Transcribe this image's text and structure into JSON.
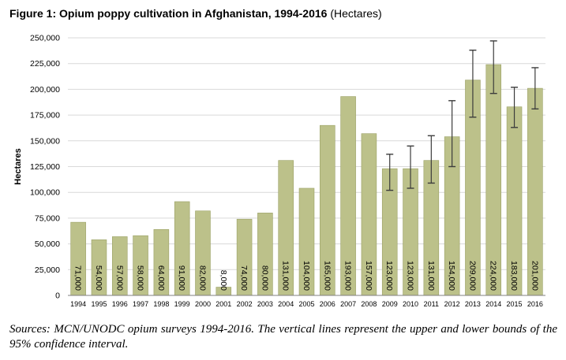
{
  "figure": {
    "title": "Figure 1: Opium poppy cultivation in Afghanistan, 1994-2016",
    "unit": "(Hectares)",
    "source": "Sources: MCN/UNODC opium surveys 1994-2016. The vertical lines represent the upper and lower bounds of the 95% confidence interval."
  },
  "colors": {
    "bar_fill": "#bcc18a",
    "bar_stroke": "#9aa064",
    "gridline": "#d9d9d9",
    "error_bar": "#3c3c3c",
    "text": "#000000"
  },
  "chart_data": {
    "type": "bar",
    "ylabel": "Hectares",
    "xlabel": "",
    "ylim": [
      0,
      250000
    ],
    "yticks": [
      0,
      25000,
      50000,
      75000,
      100000,
      125000,
      150000,
      175000,
      200000,
      225000,
      250000
    ],
    "ytick_labels": [
      "0",
      "25,000",
      "50,000",
      "75,000",
      "100,000",
      "125,000",
      "150,000",
      "175,000",
      "200,000",
      "225,000",
      "250,000"
    ],
    "grid": true,
    "categories": [
      "1994",
      "1995",
      "1996",
      "1997",
      "1998",
      "1999",
      "2000",
      "2001",
      "2002",
      "2003",
      "2004",
      "2005",
      "2006",
      "2007",
      "2008",
      "2009",
      "2010",
      "2011",
      "2012",
      "2013",
      "2014",
      "2015",
      "2016"
    ],
    "values": [
      71000,
      54000,
      57000,
      58000,
      64000,
      91000,
      82000,
      8000,
      74000,
      80000,
      131000,
      104000,
      165000,
      193000,
      157000,
      123000,
      123000,
      131000,
      154000,
      209000,
      224000,
      183000,
      201000
    ],
    "value_labels": [
      "71,000",
      "54,000",
      "57,000",
      "58,000",
      "64,000",
      "91,000",
      "82,000",
      "8,000",
      "74,000",
      "80,000",
      "131,000",
      "104,000",
      "165,000",
      "193,000",
      "157,000",
      "123,000",
      "123,000",
      "131,000",
      "154,000",
      "209,000",
      "224,000",
      "183,000",
      "201,000"
    ],
    "confidence_intervals": [
      null,
      null,
      null,
      null,
      null,
      null,
      null,
      null,
      null,
      null,
      null,
      null,
      null,
      null,
      null,
      [
        102000,
        137000
      ],
      [
        104000,
        145000
      ],
      [
        109000,
        155000
      ],
      [
        125000,
        189000
      ],
      [
        173000,
        238000
      ],
      [
        196000,
        247000
      ],
      [
        163000,
        202000
      ],
      [
        181000,
        221000
      ]
    ]
  }
}
